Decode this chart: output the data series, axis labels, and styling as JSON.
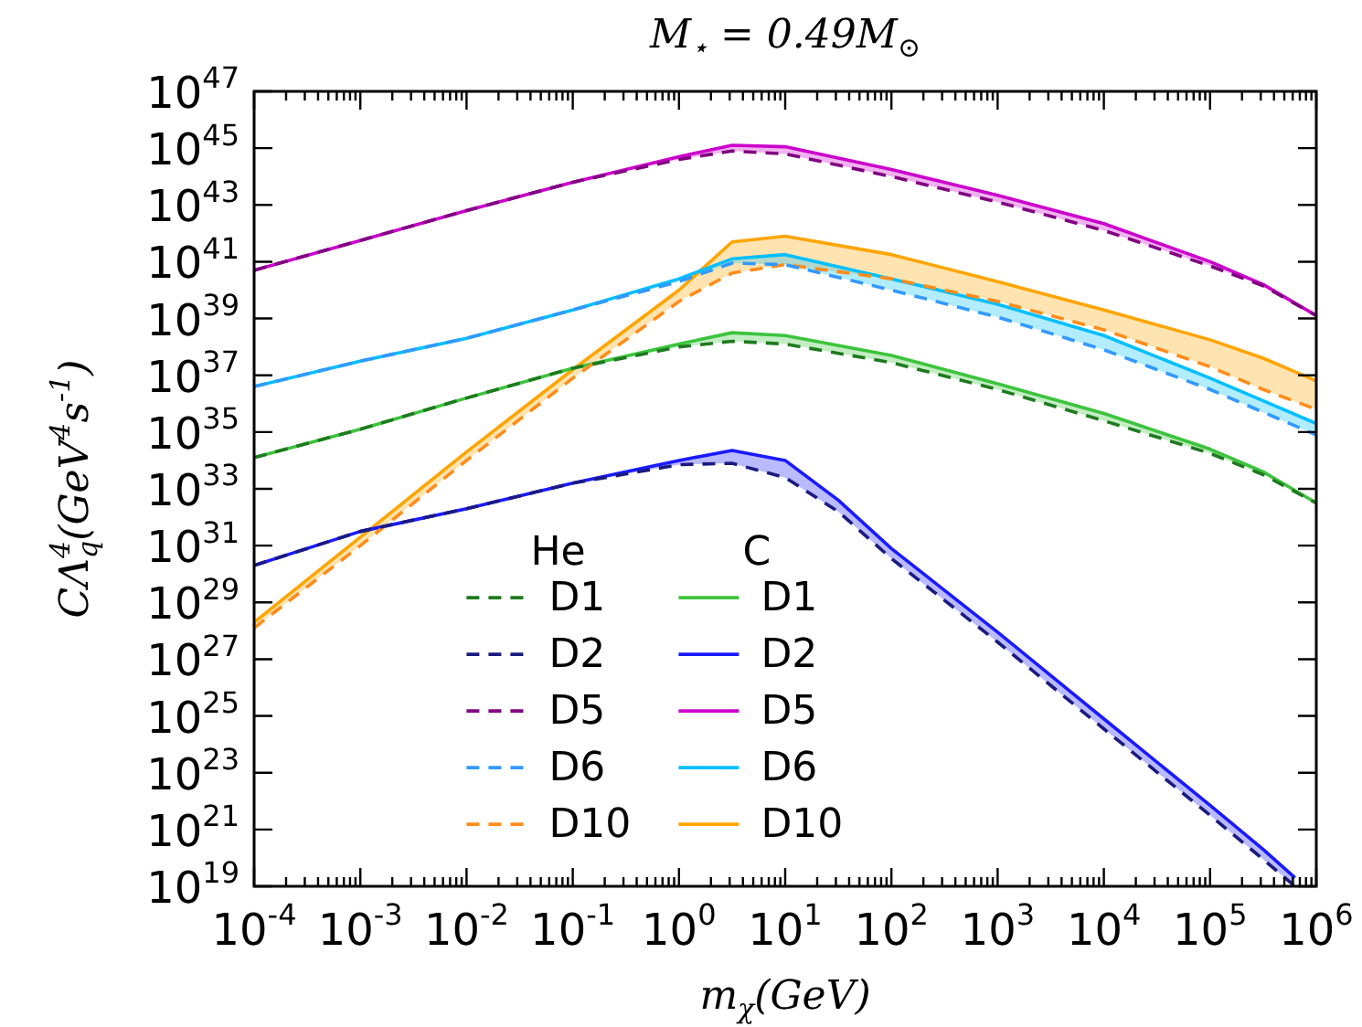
{
  "chart_data": {
    "type": "line",
    "title": "M$_{⋆}$ = 0.49M$_{⊙}$",
    "xlabel": "m$_{χ}$(GeV)",
    "ylabel": "CΛ$_{q}$$^{4}$(GeV$^{4}$s$^{-1}$)",
    "log": "xy",
    "grid": false,
    "legend": "bottom",
    "marker": "none",
    "annotations": [
      "He",
      "C"
    ],
    "xlim": [
      0.0001,
      1000000
    ],
    "ylim": [
      1e+19,
      1e+47
    ],
    "xticks": [
      {
        "value": 0.0001,
        "label": "10$^{-4}$"
      },
      {
        "value": 0.001,
        "label": "10$^{-3}$"
      },
      {
        "value": 0.01,
        "label": "10$^{-2}$"
      },
      {
        "value": 0.1,
        "label": "10$^{-1}$"
      },
      {
        "value": 1,
        "label": "10$^{0}$"
      },
      {
        "value": 10,
        "label": "10$^{1}$"
      },
      {
        "value": 100,
        "label": "10$^{2}$"
      },
      {
        "value": 1000,
        "label": "10$^{3}$"
      },
      {
        "value": 10000,
        "label": "10$^{4}$"
      },
      {
        "value": 100000,
        "label": "10$^{5}$"
      },
      {
        "value": 1000000,
        "label": "10$^{6}$"
      }
    ],
    "yticks": [
      {
        "value": 1e+19,
        "label": "10$^{19}$"
      },
      {
        "value": 1e+21,
        "label": "10$^{21}$"
      },
      {
        "value": 1e+23,
        "label": "10$^{23}$"
      },
      {
        "value": 1e+25,
        "label": "10$^{25}$"
      },
      {
        "value": 1e+27,
        "label": "10$^{27}$"
      },
      {
        "value": 1e+29,
        "label": "10$^{29}$"
      },
      {
        "value": 1e+31,
        "label": "10$^{31}$"
      },
      {
        "value": 1e+33,
        "label": "10$^{33}$"
      },
      {
        "value": 1e+35,
        "label": "10$^{35}$"
      },
      {
        "value": 1e+37,
        "label": "10$^{37}$"
      },
      {
        "value": 1e+39,
        "label": "10$^{39}$"
      },
      {
        "value": 1e+41,
        "label": "10$^{41}$"
      },
      {
        "value": 1e+43,
        "label": "10$^{43}$"
      },
      {
        "value": 1e+45,
        "label": "10$^{45}$"
      },
      {
        "value": 1e+47,
        "label": "10$^{47}$"
      }
    ],
    "x": [
      0.0001,
      0.001,
      0.01,
      0.1,
      1,
      3.16,
      10,
      100,
      1000,
      10000,
      100000,
      316000,
      1000000
    ],
    "series": [
      {
        "name": "D1",
        "color": "#1f7a1f",
        "line_style": "dashed",
        "values": [
          1.26e+34,
          1.26e+35,
          1.58e+36,
          1.78e+37,
          1e+38,
          1.58e+38,
          1.26e+38,
          2.8e+37,
          3.16e+36,
          2.5e+35,
          1.78e+34,
          3.16e+33,
          3.16e+32
        ]
      },
      {
        "name": "D2",
        "color": "#1a1a80",
        "line_style": "dashed",
        "x": [
          0.0001,
          0.001,
          0.01,
          0.1,
          1,
          3.16,
          10,
          31.6,
          100,
          1000,
          10000,
          100000,
          316000,
          630000
        ],
        "values": [
          2e+30,
          3.16e+31,
          2e+32,
          1.58e+33,
          7.1e+33,
          7.9e+33,
          2.5e+33,
          1.58e+32,
          3.5e+30,
          4e+27,
          3.5e+24,
          3.16e+21,
          8.9e+19,
          1e+19
        ]
      },
      {
        "name": "D5",
        "color": "#800080",
        "line_style": "dashed",
        "values": [
          5e+40,
          5.6e+41,
          6.3e+42,
          6.3e+43,
          4e+44,
          7.9e+44,
          6.3e+44,
          1e+44,
          1.26e+43,
          1.26e+42,
          7.1e+40,
          1.41e+40,
          1.26e+39
        ]
      },
      {
        "name": "D6",
        "color": "#3399ff",
        "line_style": "dashed",
        "values": [
          4e+36,
          3.16e+37,
          2e+38,
          2e+39,
          2e+40,
          8.9e+40,
          7.9e+40,
          1e+40,
          1.12e+39,
          7.9e+37,
          3.16e+36,
          5e+35,
          7.9e+34
        ]
      },
      {
        "name": "D10",
        "color": "#ff8c1a",
        "line_style": "dashed",
        "values": [
          1.26e+28,
          1e+31,
          1e+34,
          7.9e+36,
          4e+39,
          4e+40,
          7.9e+40,
          2.5e+40,
          4e+39,
          4e+38,
          2e+37,
          3.16e+36,
          6.3e+35
        ]
      },
      {
        "name": "D1",
        "color": "#3cc43c",
        "line_style": "solid",
        "values": [
          1.26e+34,
          1.26e+35,
          1.58e+36,
          1.78e+37,
          1.26e+38,
          3.16e+38,
          2.5e+38,
          5e+37,
          5e+36,
          4.5e+35,
          2.5e+34,
          4e+33,
          3.16e+32
        ],
        "lower": [
          1.26e+34,
          1.26e+35,
          1.58e+36,
          1.78e+37,
          1e+38,
          1.58e+38,
          1.26e+38,
          2.8e+37,
          3.16e+36,
          2.5e+35,
          1.78e+34,
          3.16e+33,
          3.16e+32
        ],
        "upper": [
          1.26e+34,
          1.26e+35,
          1.58e+36,
          1.78e+37,
          1.26e+38,
          3.16e+38,
          2.5e+38,
          5e+37,
          5e+36,
          4.5e+35,
          2.5e+34,
          4e+33,
          3.16e+32
        ]
      },
      {
        "name": "D2",
        "color": "#1a1aff",
        "line_style": "solid",
        "x": [
          0.0001,
          0.001,
          0.01,
          0.1,
          1,
          3.16,
          10,
          31.6,
          100,
          1000,
          10000,
          100000,
          316000,
          630000
        ],
        "values": [
          2e+30,
          3.16e+31,
          2e+32,
          1.58e+33,
          1e+34,
          2.24e+34,
          1e+34,
          4e+32,
          7.9e+30,
          8.9e+27,
          7.9e+24,
          7.1e+21,
          2e+20,
          2e+19
        ],
        "lower": [
          2e+30,
          3.16e+31,
          2e+32,
          1.58e+33,
          7.1e+33,
          7.9e+33,
          2.5e+33,
          1.58e+32,
          3.5e+30,
          4e+27,
          3.5e+24,
          3.16e+21,
          8.9e+19,
          1e+19
        ],
        "upper": [
          2e+30,
          3.16e+31,
          2e+32,
          1.58e+33,
          1e+34,
          2.24e+34,
          1e+34,
          4e+32,
          7.9e+30,
          8.9e+27,
          7.9e+24,
          7.1e+21,
          2e+20,
          2e+19
        ]
      },
      {
        "name": "D5",
        "color": "#cc00cc",
        "line_style": "solid",
        "values": [
          5e+40,
          5.6e+41,
          6.3e+42,
          6.3e+43,
          5e+44,
          1.26e+45,
          1.12e+45,
          1.78e+44,
          2.2e+43,
          2.2e+42,
          1e+41,
          1.58e+40,
          1.26e+39
        ],
        "lower": [
          5e+40,
          5.6e+41,
          6.3e+42,
          6.3e+43,
          4e+44,
          7.9e+44,
          6.3e+44,
          1e+44,
          1.26e+43,
          1.26e+42,
          7.1e+40,
          1.41e+40,
          1.26e+39
        ],
        "upper": [
          5e+40,
          5.6e+41,
          6.3e+42,
          6.3e+43,
          5e+44,
          1.26e+45,
          1.12e+45,
          1.78e+44,
          2.2e+43,
          2.2e+42,
          1e+41,
          1.58e+40,
          1.26e+39
        ]
      },
      {
        "name": "D6",
        "color": "#00bfff",
        "line_style": "solid",
        "values": [
          4e+36,
          3.16e+37,
          2e+38,
          2e+39,
          2.5e+40,
          1.26e+41,
          1.78e+41,
          2.5e+40,
          3.16e+39,
          2.5e+38,
          7.9e+36,
          1.26e+36,
          2e+35
        ],
        "lower": [
          4e+36,
          3.16e+37,
          2e+38,
          2e+39,
          2e+40,
          8.9e+40,
          7.9e+40,
          1e+40,
          1.12e+39,
          7.9e+37,
          3.16e+36,
          5e+35,
          7.9e+34
        ],
        "upper": [
          4e+36,
          3.16e+37,
          2e+38,
          2e+39,
          2.5e+40,
          1.26e+41,
          1.78e+41,
          2.5e+40,
          3.16e+39,
          2.5e+38,
          7.9e+36,
          1.26e+36,
          2e+35
        ]
      },
      {
        "name": "D10",
        "color": "#ffa500",
        "line_style": "solid",
        "values": [
          2e+28,
          2e+31,
          2e+34,
          1.58e+37,
          1e+40,
          5e+41,
          7.9e+41,
          1.78e+41,
          2e+40,
          2e+39,
          1.78e+38,
          4e+37,
          6.3e+36
        ],
        "lower": [
          1.26e+28,
          1e+31,
          1e+34,
          7.9e+36,
          4e+39,
          4e+40,
          7.9e+40,
          2.5e+40,
          4e+39,
          4e+38,
          2e+37,
          3.16e+36,
          6.3e+35
        ],
        "upper": [
          2e+28,
          2e+31,
          2e+34,
          1.58e+37,
          1e+40,
          5e+41,
          7.9e+41,
          1.78e+41,
          2e+40,
          2e+39,
          1.78e+38,
          4e+37,
          6.3e+36
        ]
      }
    ]
  }
}
